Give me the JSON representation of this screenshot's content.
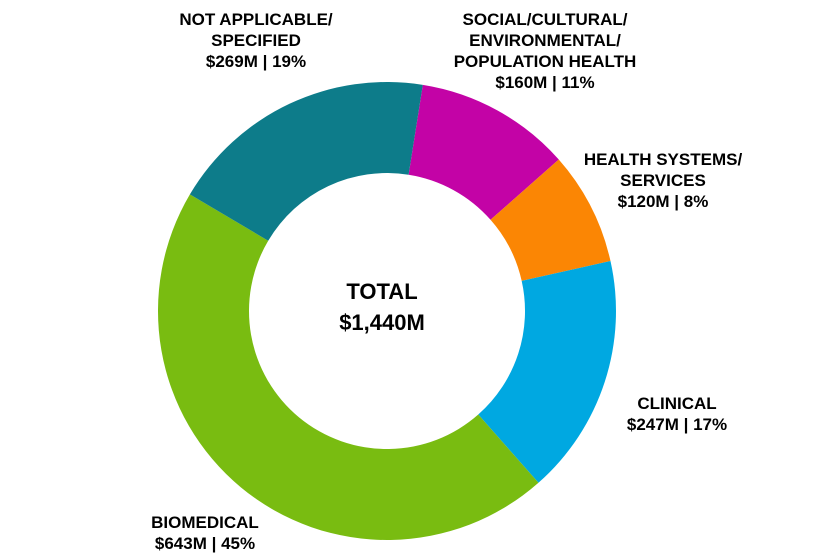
{
  "chart_data": {
    "type": "pie",
    "subtype": "donut",
    "title": "",
    "center_lines": [
      "TOTAL",
      "$1,440M"
    ],
    "total_value_musd": 1440,
    "start_angle_deg": 9,
    "clockwise": true,
    "segments": [
      {
        "id": "social-cultural",
        "name": "SOCIAL/CULTURAL/ENVIRONMENTAL/POPULATION HEALTH",
        "value_musd": 160,
        "percent": 11,
        "color": "#C303A6"
      },
      {
        "id": "health-systems",
        "name": "HEALTH SYSTEMS/SERVICES",
        "value_musd": 120,
        "percent": 8,
        "color": "#FB8604"
      },
      {
        "id": "clinical",
        "name": "CLINICAL",
        "value_musd": 247,
        "percent": 17,
        "color": "#00A8E1"
      },
      {
        "id": "biomedical",
        "name": "BIOMEDICAL",
        "value_musd": 643,
        "percent": 45,
        "color": "#79BC11"
      },
      {
        "id": "not-applicable",
        "name": "NOT APPLICABLE/SPECIFIED",
        "value_musd": 269,
        "percent": 19,
        "color": "#0D7C8A"
      }
    ]
  },
  "labels": {
    "not_applicable": {
      "lines": [
        "NOT APPLICABLE/",
        "SPECIFIED",
        "$269M | 19%"
      ]
    },
    "social": {
      "lines": [
        "SOCIAL/CULTURAL/",
        "ENVIRONMENTAL/",
        "POPULATION HEALTH",
        "$160M | 11%"
      ]
    },
    "health_systems": {
      "lines": [
        "HEALTH SYSTEMS/",
        "SERVICES",
        "$120M | 8%"
      ]
    },
    "clinical": {
      "lines": [
        "CLINICAL",
        "$247M | 17%"
      ]
    },
    "biomedical": {
      "lines": [
        "BIOMEDICAL",
        "$643M | 45%"
      ]
    }
  }
}
